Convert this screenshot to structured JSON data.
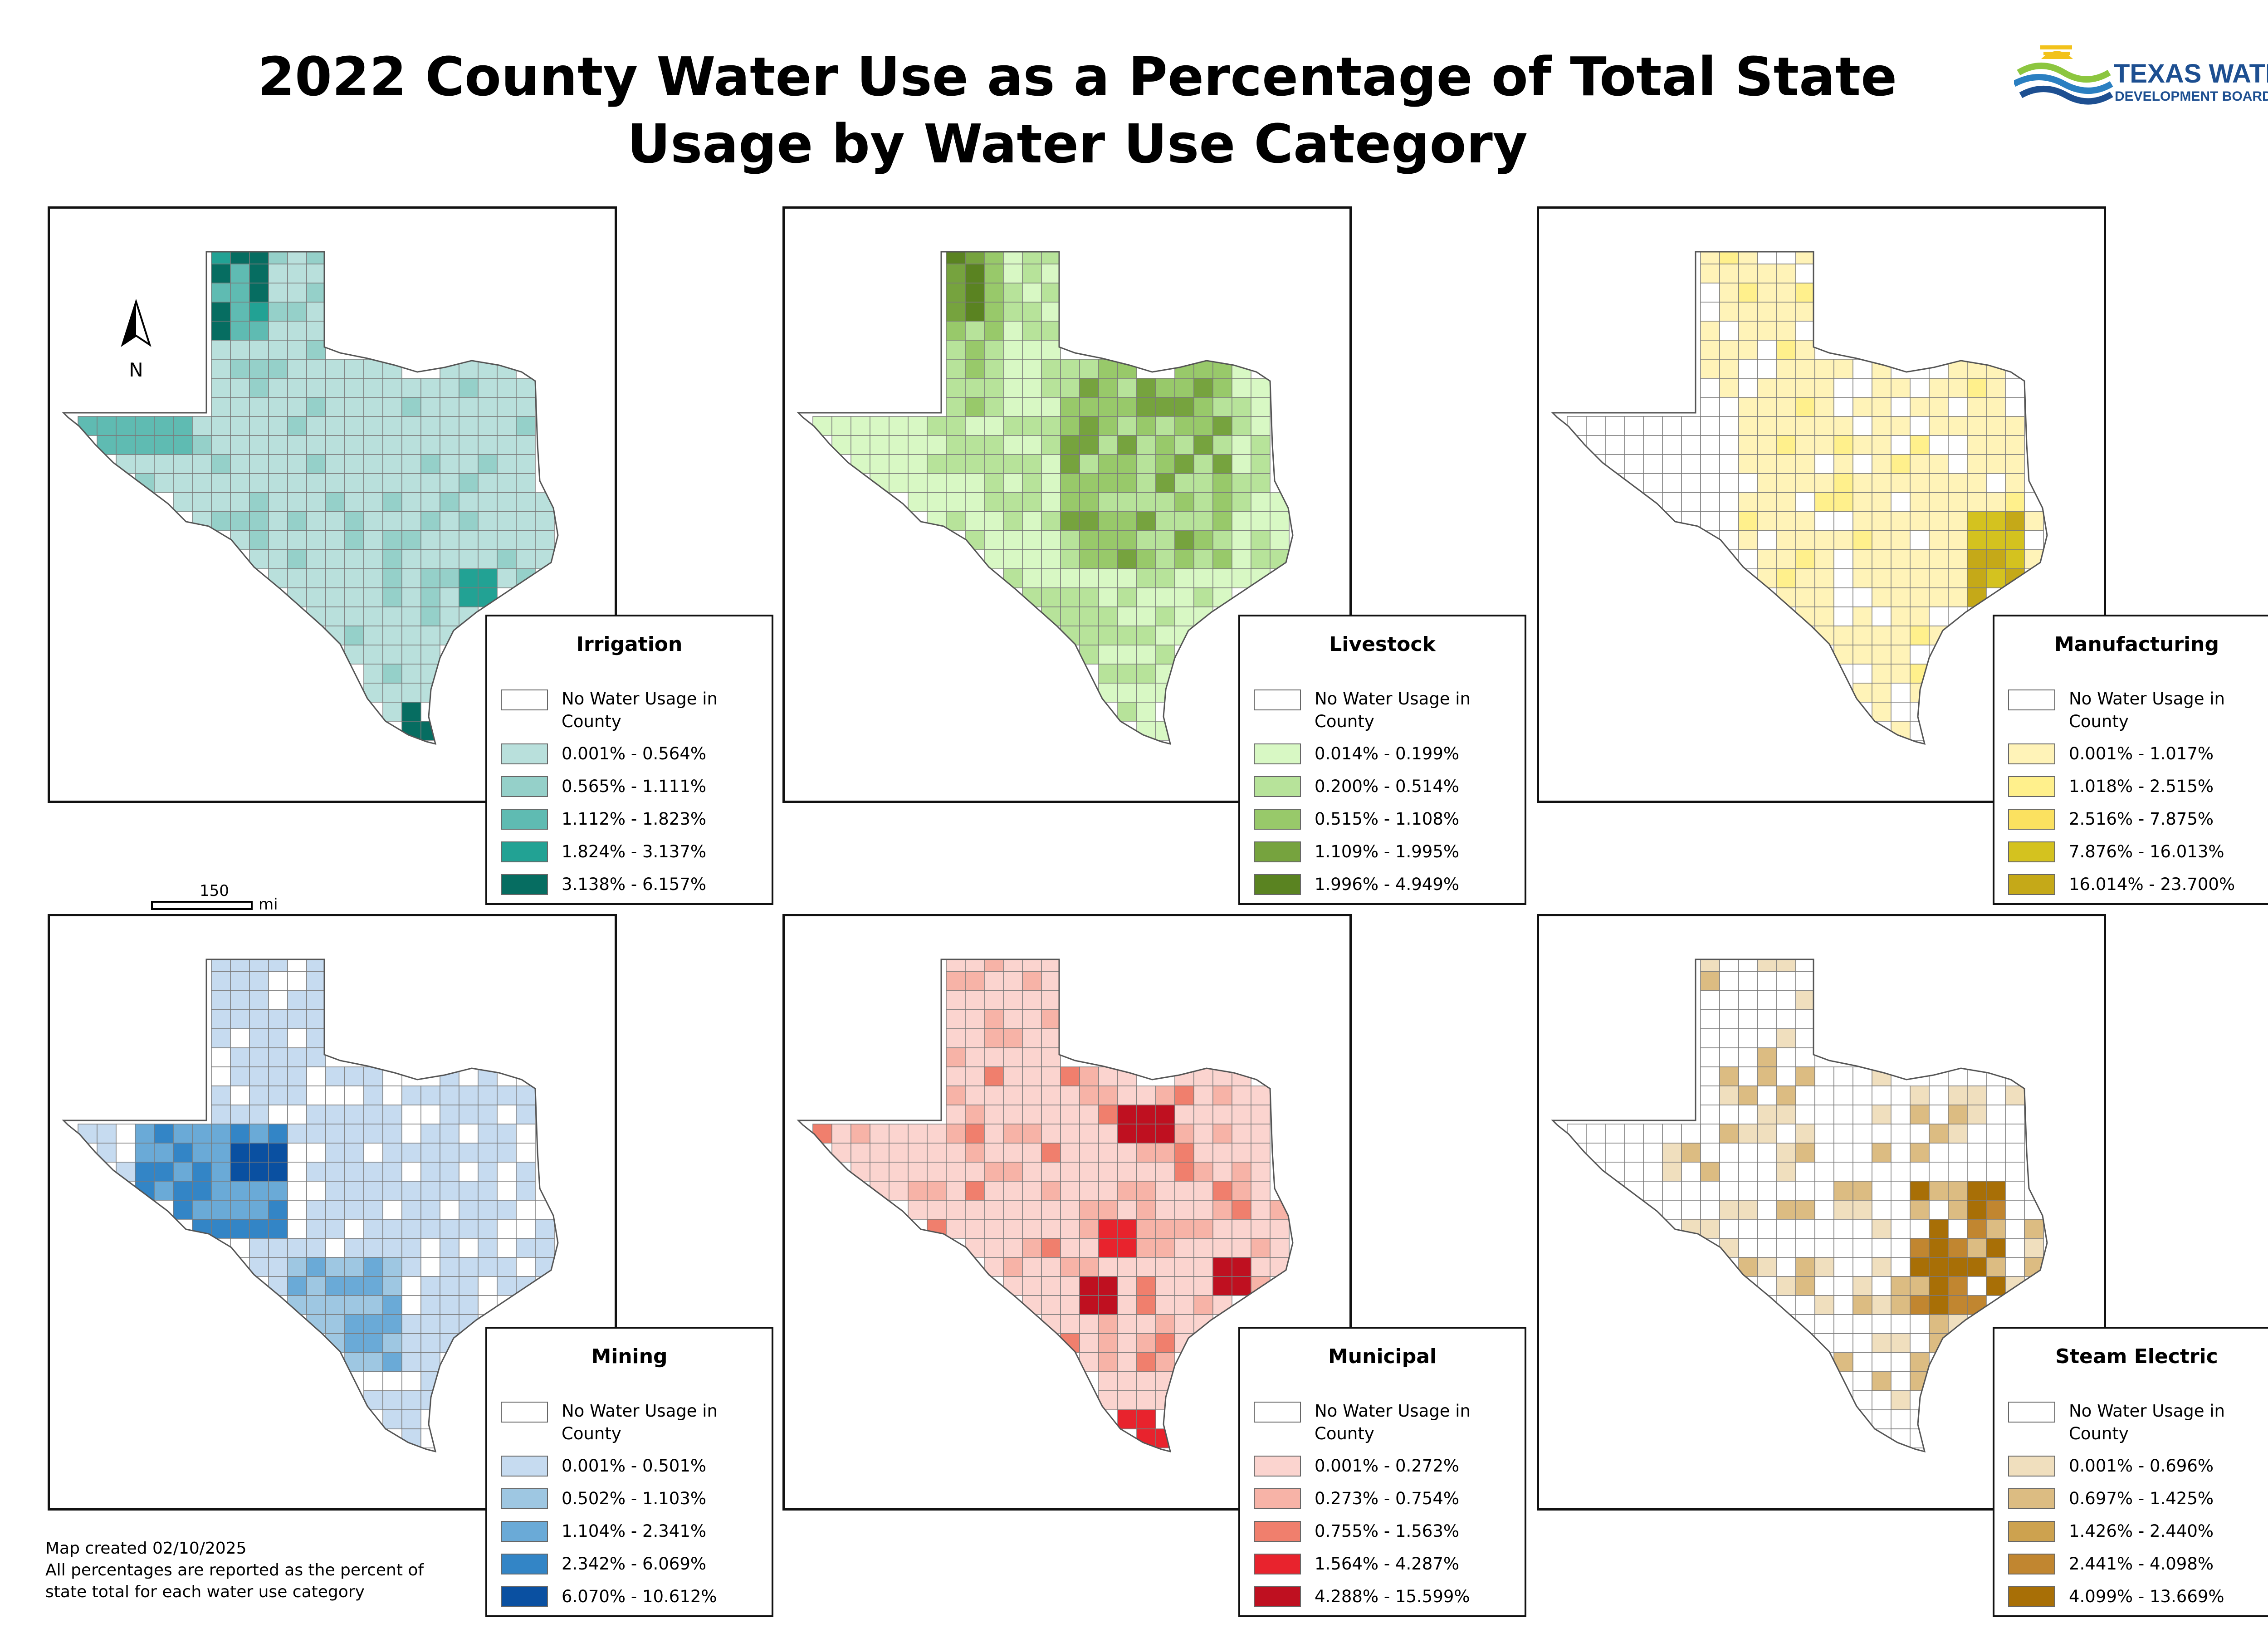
{
  "title_line1": "2022 County Water Use as a Percentage of Total State",
  "title_line2": "Usage by Water Use Category",
  "logo": {
    "line1": "TEXAS WATER",
    "line2": "DEVELOPMENT BOARD",
    "icon": "sun-waves-logo-icon"
  },
  "north_arrow": {
    "label": "N"
  },
  "scale_bar": {
    "value": "150",
    "unit": "mi"
  },
  "footer": {
    "created": "Map created 02/10/2025",
    "note_line1": "All percentages are reported as the percent of",
    "note_line2": "state total for each water use category"
  },
  "panels": [
    {
      "id": "irrigation",
      "title": "Irrigation",
      "classes": [
        "No Water Usage in County",
        "0.001% - 0.564%",
        "0.565% - 1.111%",
        "1.112% - 1.823%",
        "1.824% - 3.137%",
        "3.138% - 6.157%"
      ],
      "colors": [
        "#ffffff",
        "#b9e0dc",
        "#95d0c9",
        "#5fbbb2",
        "#22a294",
        "#066d61"
      ]
    },
    {
      "id": "livestock",
      "title": "Livestock",
      "classes": [
        "No Water Usage in County",
        "0.014% - 0.199%",
        "0.200% - 0.514%",
        "0.515% - 1.108%",
        "1.109% - 1.995%",
        "1.996% - 4.949%"
      ],
      "colors": [
        "#ffffff",
        "#d8f8c4",
        "#b7e39a",
        "#98c96a",
        "#76a33e",
        "#5a8321"
      ]
    },
    {
      "id": "manufacturing",
      "title": "Manufacturing",
      "classes": [
        "No Water Usage in County",
        "0.001% - 1.017%",
        "1.018% - 2.515%",
        "2.516% - 7.875%",
        "7.876% - 16.013%",
        "16.014% - 23.700%"
      ],
      "colors": [
        "#ffffff",
        "#fff3b8",
        "#fff08c",
        "#fbe160",
        "#d4c21f",
        "#c5a918"
      ]
    },
    {
      "id": "mining",
      "title": "Mining",
      "classes": [
        "No Water Usage in County",
        "0.001% - 0.501%",
        "0.502% - 1.103%",
        "1.104% - 2.341%",
        "2.342% - 6.069%",
        "6.070% - 10.612%"
      ],
      "colors": [
        "#ffffff",
        "#c6dbf0",
        "#9ec7e2",
        "#6aaad7",
        "#3385c6",
        "#0a50a1"
      ]
    },
    {
      "id": "municipal",
      "title": "Municipal",
      "classes": [
        "No Water Usage in County",
        "0.001% - 0.272%",
        "0.273% - 0.754%",
        "0.755% - 1.563%",
        "1.564% - 4.287%",
        "4.288% - 15.599%"
      ],
      "colors": [
        "#ffffff",
        "#fbd4cf",
        "#f7b3a7",
        "#f07f6d",
        "#e8232d",
        "#bf1020"
      ]
    },
    {
      "id": "steam_electric",
      "title": "Steam Electric",
      "classes": [
        "No Water Usage in County",
        "0.001% - 0.696%",
        "0.697% - 1.425%",
        "1.426% - 2.440%",
        "2.441% - 4.098%",
        "4.099% - 13.669%"
      ],
      "colors": [
        "#ffffff",
        "#f0dfbe",
        "#dcbc82",
        "#cda24f",
        "#c18630",
        "#a86f06"
      ]
    }
  ]
}
